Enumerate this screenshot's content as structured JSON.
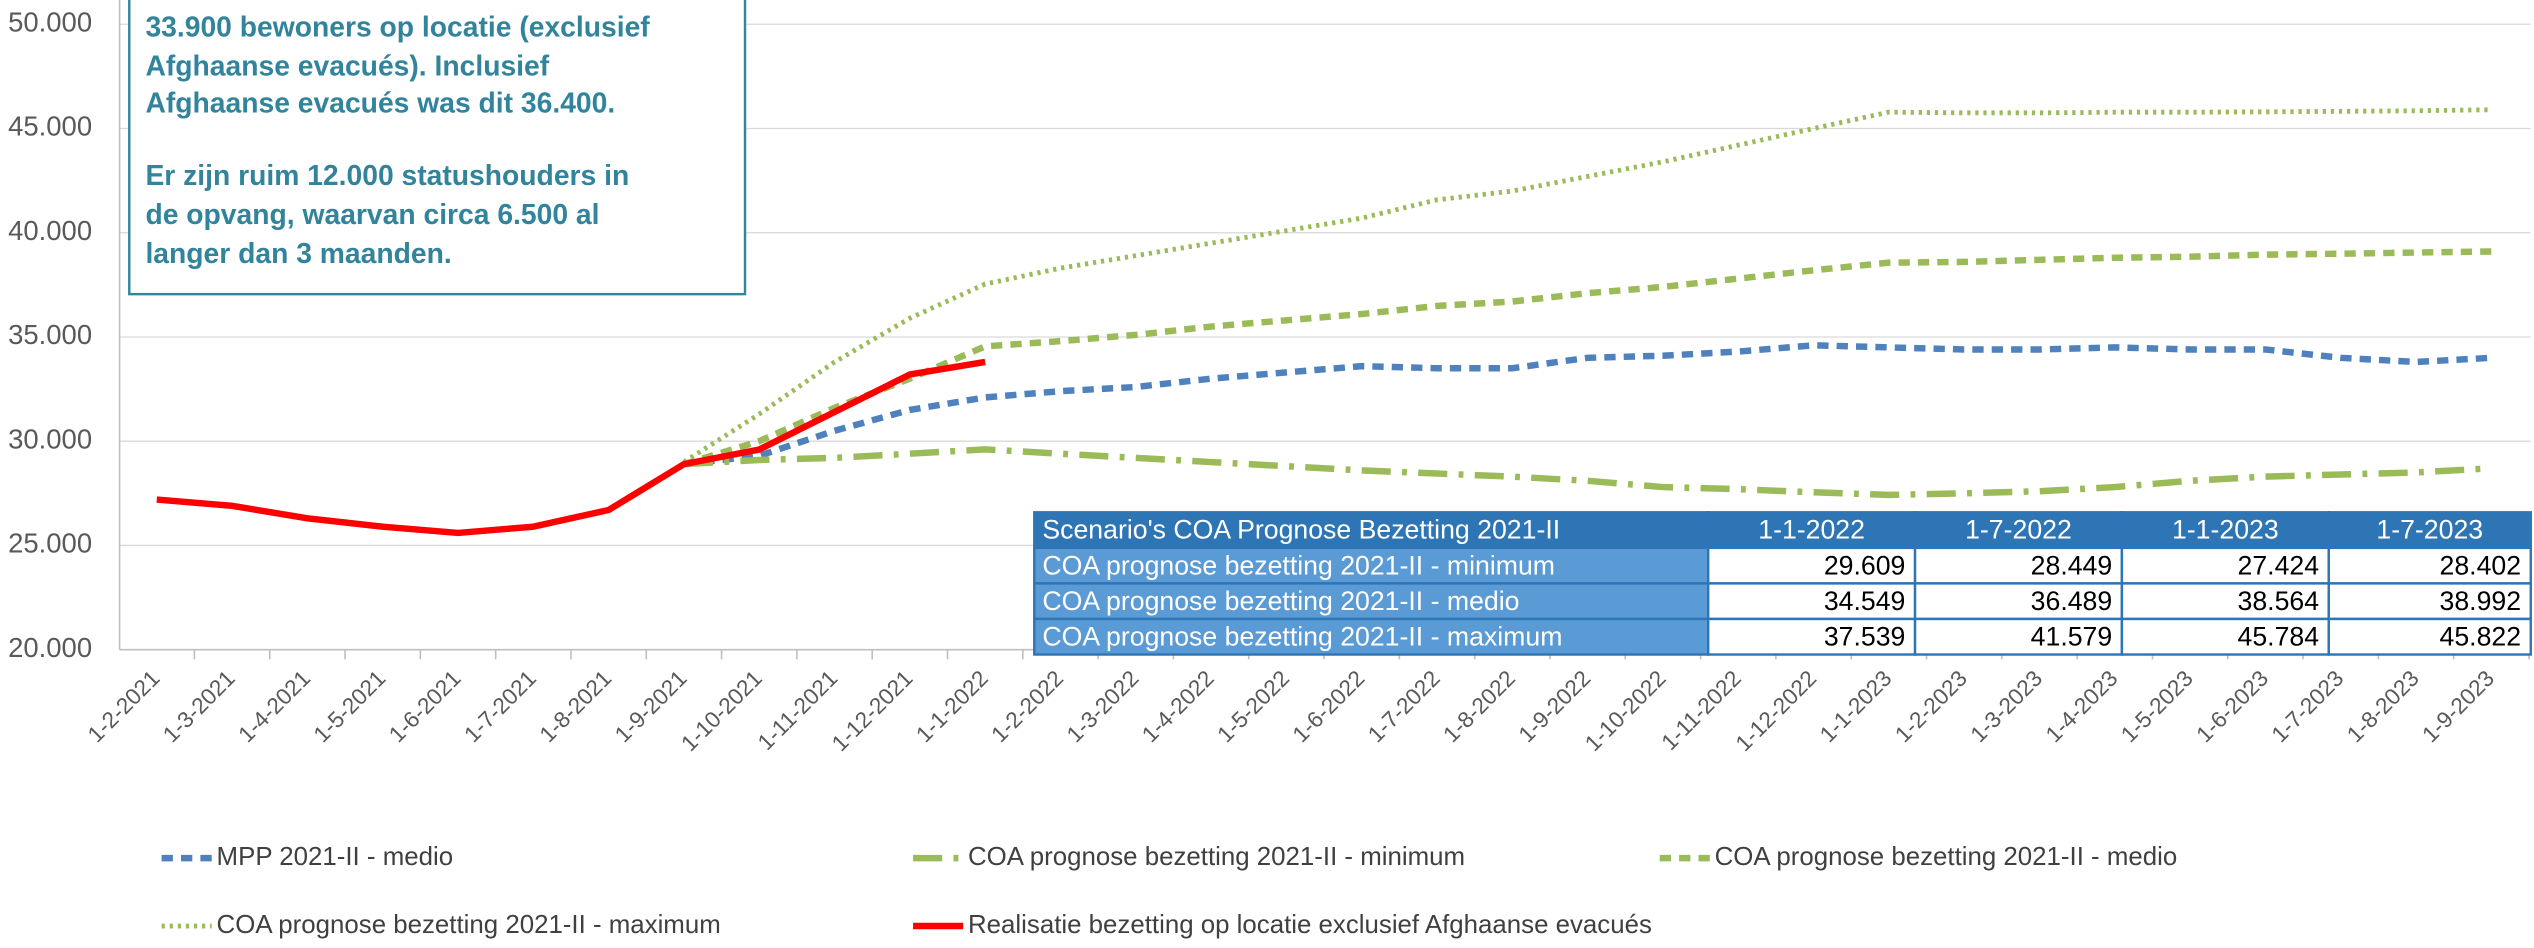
{
  "chart_data": {
    "type": "line",
    "categories": [
      "1-2-2021",
      "1-3-2021",
      "1-4-2021",
      "1-5-2021",
      "1-6-2021",
      "1-7-2021",
      "1-8-2021",
      "1-9-2021",
      "1-10-2021",
      "1-11-2021",
      "1-12-2021",
      "1-1-2022",
      "1-2-2022",
      "1-3-2022",
      "1-4-2022",
      "1-5-2022",
      "1-6-2022",
      "1-7-2022",
      "1-8-2022",
      "1-9-2022",
      "1-10-2022",
      "1-11-2022",
      "1-12-2022",
      "1-1-2023",
      "1-2-2023",
      "1-3-2023",
      "1-4-2023",
      "1-5-2023",
      "1-6-2023",
      "1-7-2023",
      "1-8-2023",
      "1-9-2023"
    ],
    "ylim": [
      20000,
      50000
    ],
    "yticks": [
      {
        "value": 20000,
        "label": "20.000"
      },
      {
        "value": 25000,
        "label": "25.000"
      },
      {
        "value": 30000,
        "label": "30.000"
      },
      {
        "value": 35000,
        "label": "35.000"
      },
      {
        "value": 40000,
        "label": "40.000"
      },
      {
        "value": 45000,
        "label": "45.000"
      },
      {
        "value": 50000,
        "label": "50.000"
      }
    ],
    "grid": true,
    "series": [
      {
        "name": "MPP 2021-II - medio",
        "color": "#4f81bd",
        "dash": "dash",
        "values": [
          null,
          null,
          null,
          null,
          null,
          null,
          null,
          28900,
          29300,
          30500,
          31500,
          32100,
          32400,
          32600,
          33000,
          33300,
          33600,
          33500,
          33500,
          34000,
          34100,
          34300,
          34600,
          34500,
          34400,
          34400,
          34500,
          34400,
          34400,
          34000,
          33800,
          34000
        ]
      },
      {
        "name": "COA prognose bezetting 2021-II - minimum",
        "color": "#9bbb59",
        "dash": "dashdot",
        "values": [
          null,
          null,
          null,
          null,
          null,
          null,
          null,
          28900,
          29100,
          29200,
          29400,
          29609,
          29400,
          29200,
          29000,
          28800,
          28600,
          28449,
          28300,
          28100,
          27800,
          27700,
          27550,
          27424,
          27500,
          27600,
          27800,
          28100,
          28300,
          28402,
          28500,
          28700
        ]
      },
      {
        "name": "COA prognose bezetting 2021-II - medio",
        "color": "#9bbb59",
        "dash": "dash",
        "values": [
          null,
          null,
          null,
          null,
          null,
          null,
          null,
          28900,
          30000,
          31600,
          33000,
          34549,
          34800,
          35100,
          35500,
          35800,
          36100,
          36489,
          36700,
          37100,
          37400,
          37800,
          38200,
          38564,
          38600,
          38700,
          38800,
          38850,
          38950,
          38992,
          39050,
          39100
        ]
      },
      {
        "name": "COA prognose bezetting 2021-II - maximum",
        "color": "#9bbb59",
        "dash": "dotted",
        "values": [
          null,
          null,
          null,
          null,
          null,
          null,
          null,
          29000,
          31300,
          33800,
          35900,
          37539,
          38300,
          38900,
          39500,
          40100,
          40700,
          41579,
          42000,
          42700,
          43400,
          44200,
          45000,
          45784,
          45750,
          45750,
          45780,
          45780,
          45800,
          45822,
          45850,
          45900
        ]
      },
      {
        "name": "Realisatie bezetting op locatie exclusief Afghaanse evacués",
        "color": "#ff0000",
        "dash": "solid",
        "values": [
          27200,
          26900,
          26300,
          25900,
          25600,
          25900,
          26700,
          28900,
          29600,
          31400,
          33200,
          33800,
          null,
          null,
          null,
          null,
          null,
          null,
          null,
          null,
          null,
          null,
          null,
          null,
          null,
          null,
          null,
          null,
          null,
          null,
          null,
          null
        ]
      }
    ],
    "annotation": {
      "lines": [
        "33.900 bewoners op locatie (exclusief",
        "Afghaanse evacués). Inclusief",
        "Afghaanse evacués was dit 36.400.",
        "Er zijn ruim 12.000 statushouders in",
        "de opvang, waarvan circa 6.500 al",
        "langer dan 3 maanden."
      ]
    },
    "table": {
      "header": [
        "Scenario's COA Prognose Bezetting 2021-II",
        "1-1-2022",
        "1-7-2022",
        "1-1-2023",
        "1-7-2023"
      ],
      "rows": [
        [
          "COA prognose bezetting 2021-II - minimum",
          "29.609",
          "28.449",
          "27.424",
          "28.402"
        ],
        [
          "COA prognose bezetting 2021-II - medio",
          "34.549",
          "36.489",
          "38.564",
          "38.992"
        ],
        [
          "COA prognose bezetting 2021-II - maximum",
          "37.539",
          "41.579",
          "45.784",
          "45.822"
        ]
      ]
    }
  }
}
